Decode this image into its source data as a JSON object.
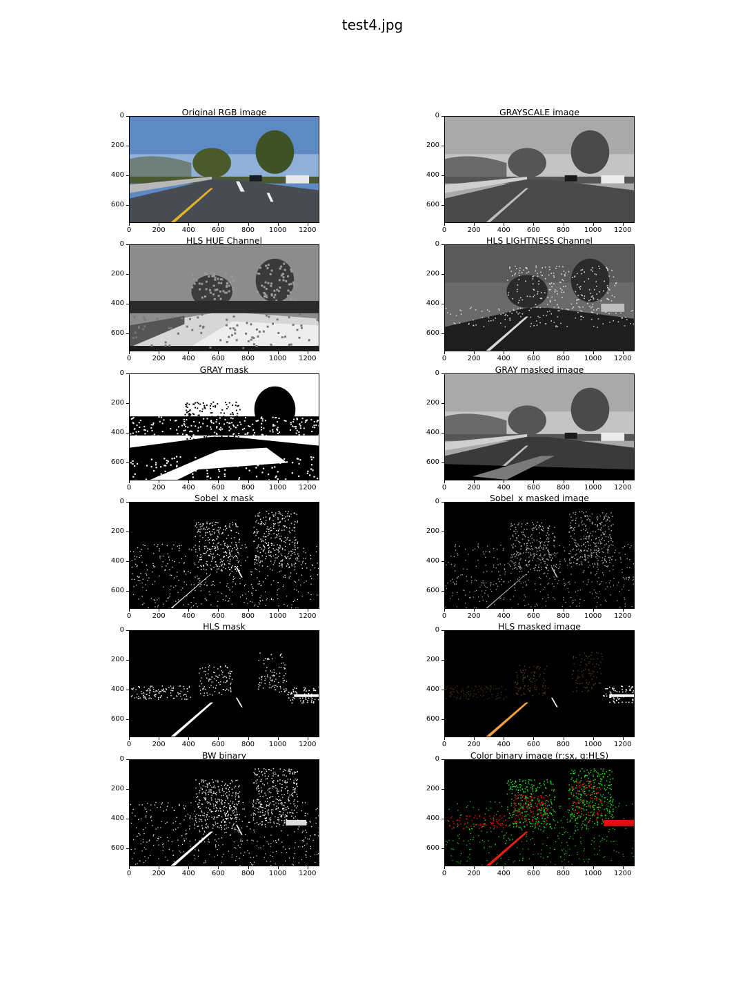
{
  "figure": {
    "title": "test4.jpg"
  },
  "axes": {
    "xticks": [
      "0",
      "200",
      "400",
      "600",
      "800",
      "1000",
      "1200"
    ],
    "yticks": [
      "0",
      "200",
      "400",
      "600"
    ]
  },
  "panels": [
    {
      "title": "Original RGB image",
      "kind": "rgb"
    },
    {
      "title": "GRAYSCALE image",
      "kind": "gray"
    },
    {
      "title": "HLS HUE Channel",
      "kind": "hue"
    },
    {
      "title": "HLS LIGHTNESS Channel",
      "kind": "light"
    },
    {
      "title": "GRAY mask",
      "kind": "graymask"
    },
    {
      "title": "GRAY masked image",
      "kind": "graymasked"
    },
    {
      "title": "Sobel_x mask",
      "kind": "sobel"
    },
    {
      "title": "Sobel_x masked image",
      "kind": "sobelmasked"
    },
    {
      "title": "HLS mask",
      "kind": "hlsmask"
    },
    {
      "title": "HLS masked image",
      "kind": "hlsmasked"
    },
    {
      "title": "BW binary",
      "kind": "bw"
    },
    {
      "title": "Color binary image (r:sx, g:HLS)",
      "kind": "color"
    }
  ]
}
